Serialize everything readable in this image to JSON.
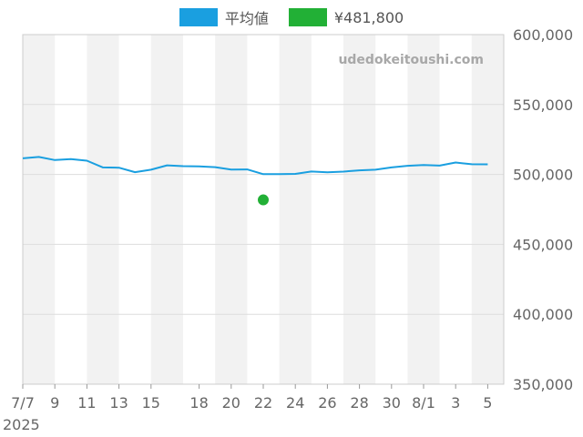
{
  "chart_data": {
    "type": "line",
    "title": "",
    "xlabel": "",
    "ylabel": "",
    "watermark": "udedokeitoushi.com",
    "year_label": "2025",
    "ylim": [
      350000,
      600000
    ],
    "y_ticks": [
      {
        "value": 600000,
        "label": "600,000"
      },
      {
        "value": 550000,
        "label": "550,000"
      },
      {
        "value": 500000,
        "label": "500,000"
      },
      {
        "value": 450000,
        "label": "450,000"
      },
      {
        "value": 400000,
        "label": "400,000"
      },
      {
        "value": 350000,
        "label": "350,000"
      }
    ],
    "x_start": "2025-07-07",
    "x_end": "2025-08-06",
    "x_ticks": [
      {
        "date": "2025-07-07",
        "label": "7/7"
      },
      {
        "date": "2025-07-09",
        "label": "9"
      },
      {
        "date": "2025-07-11",
        "label": "11"
      },
      {
        "date": "2025-07-13",
        "label": "13"
      },
      {
        "date": "2025-07-15",
        "label": "15"
      },
      {
        "date": "2025-07-18",
        "label": "18"
      },
      {
        "date": "2025-07-20",
        "label": "20"
      },
      {
        "date": "2025-07-22",
        "label": "22"
      },
      {
        "date": "2025-07-24",
        "label": "24"
      },
      {
        "date": "2025-07-26",
        "label": "26"
      },
      {
        "date": "2025-07-28",
        "label": "28"
      },
      {
        "date": "2025-07-30",
        "label": "30"
      },
      {
        "date": "2025-08-01",
        "label": "8/1"
      },
      {
        "date": "2025-08-03",
        "label": "3"
      },
      {
        "date": "2025-08-05",
        "label": "5"
      }
    ],
    "shaded_bands": [
      [
        "2025-07-07",
        "2025-07-09"
      ],
      [
        "2025-07-11",
        "2025-07-13"
      ],
      [
        "2025-07-15",
        "2025-07-17"
      ],
      [
        "2025-07-19",
        "2025-07-21"
      ],
      [
        "2025-07-23",
        "2025-07-25"
      ],
      [
        "2025-07-27",
        "2025-07-29"
      ],
      [
        "2025-07-31",
        "2025-08-02"
      ],
      [
        "2025-08-04",
        "2025-08-06"
      ]
    ],
    "legend_placement": "top-center",
    "grid": true,
    "series": [
      {
        "name": "平均値",
        "type": "line",
        "color": "#1a9fe0",
        "points": [
          {
            "x": "2025-07-07",
            "y": 511500
          },
          {
            "x": "2025-07-08",
            "y": 512500
          },
          {
            "x": "2025-07-09",
            "y": 510300
          },
          {
            "x": "2025-07-10",
            "y": 511000
          },
          {
            "x": "2025-07-11",
            "y": 509800
          },
          {
            "x": "2025-07-12",
            "y": 505000
          },
          {
            "x": "2025-07-13",
            "y": 504800
          },
          {
            "x": "2025-07-14",
            "y": 501600
          },
          {
            "x": "2025-07-15",
            "y": 503400
          },
          {
            "x": "2025-07-16",
            "y": 506500
          },
          {
            "x": "2025-07-17",
            "y": 505900
          },
          {
            "x": "2025-07-18",
            "y": 505700
          },
          {
            "x": "2025-07-19",
            "y": 505200
          },
          {
            "x": "2025-07-20",
            "y": 503500
          },
          {
            "x": "2025-07-21",
            "y": 503600
          },
          {
            "x": "2025-07-22",
            "y": 500200
          },
          {
            "x": "2025-07-23",
            "y": 500200
          },
          {
            "x": "2025-07-24",
            "y": 500400
          },
          {
            "x": "2025-07-25",
            "y": 502100
          },
          {
            "x": "2025-07-26",
            "y": 501500
          },
          {
            "x": "2025-07-27",
            "y": 502000
          },
          {
            "x": "2025-07-28",
            "y": 502900
          },
          {
            "x": "2025-07-29",
            "y": 503400
          },
          {
            "x": "2025-07-30",
            "y": 505000
          },
          {
            "x": "2025-07-31",
            "y": 506200
          },
          {
            "x": "2025-08-01",
            "y": 506800
          },
          {
            "x": "2025-08-02",
            "y": 506300
          },
          {
            "x": "2025-08-03",
            "y": 508500
          },
          {
            "x": "2025-08-04",
            "y": 507300
          },
          {
            "x": "2025-08-05",
            "y": 507200
          }
        ]
      },
      {
        "name": "¥481,800",
        "type": "scatter",
        "color": "#22b036",
        "points": [
          {
            "x": "2025-07-22",
            "y": 481800
          }
        ]
      }
    ]
  }
}
